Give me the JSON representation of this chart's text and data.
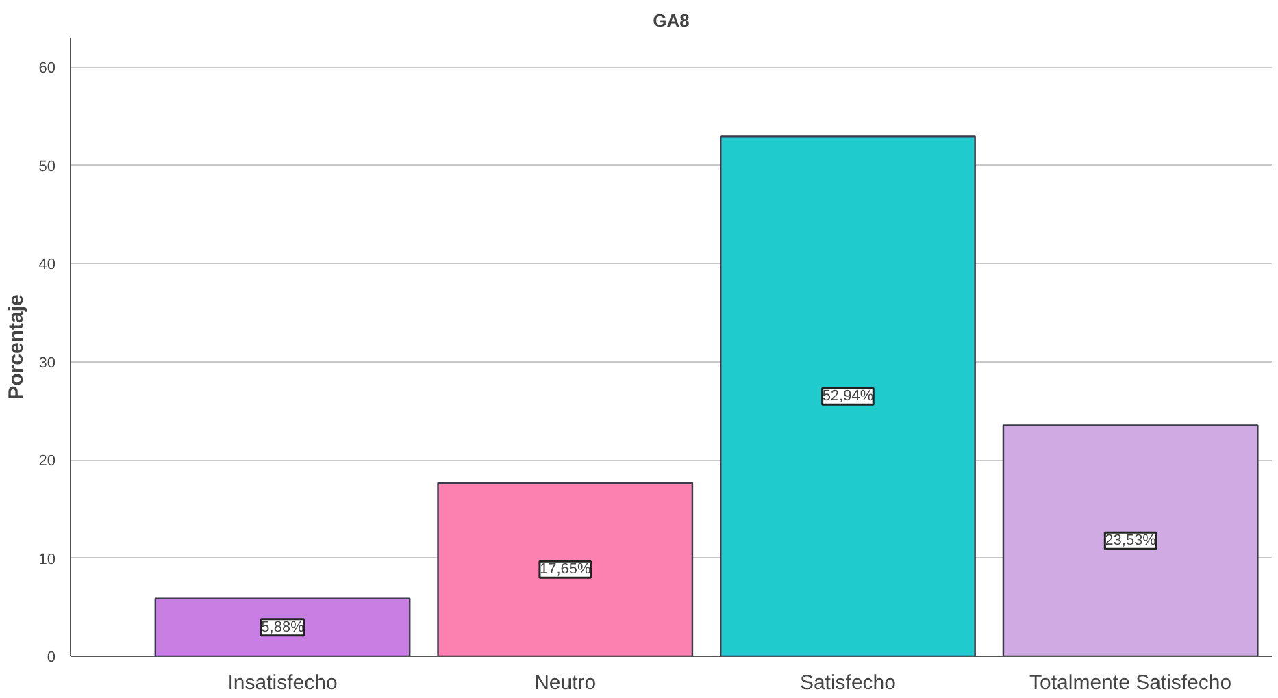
{
  "chart_data": {
    "type": "bar",
    "title": "GA8",
    "ylabel": "Porcentaje",
    "categories": [
      "Insatisfecho",
      "Neutro",
      "Satisfecho",
      "Totalmente Satisfecho"
    ],
    "values": [
      5.88,
      17.65,
      52.94,
      23.53
    ],
    "value_labels": [
      "5,88%",
      "17,65%",
      "52,94%",
      "23,53%"
    ],
    "colors": [
      "#c97ee3",
      "#fc80b0",
      "#1fcbcd",
      "#cfaae3"
    ],
    "ylim": [
      0,
      63
    ],
    "yticks": [
      0,
      10,
      20,
      30,
      40,
      50,
      60
    ],
    "grid": "y"
  }
}
